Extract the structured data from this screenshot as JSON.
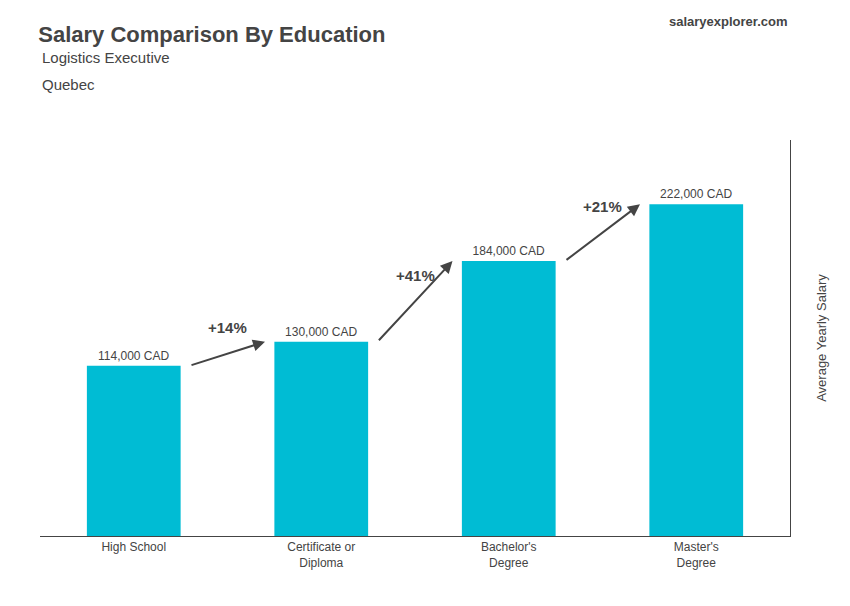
{
  "chart_data": {
    "type": "bar",
    "title": "Salary Comparison By Education",
    "subtitle": "Logistics Executive",
    "annotations": [
      {
        "text": "Quebec"
      },
      {
        "text": "salaryexplorer.com"
      },
      {
        "text": "+14%",
        "from": "High School",
        "to": "Certificate or\nDiploma"
      },
      {
        "text": "+41%",
        "from": "Certificate or\nDiploma",
        "to": "Bachelor's\nDegree"
      },
      {
        "text": "+21%",
        "from": "Bachelor's\nDegree",
        "to": "Master's\nDegree"
      }
    ],
    "ylabel": "Average Yearly Salary",
    "categories": [
      "High School",
      "Certificate or\nDiploma",
      "Bachelor's\nDegree",
      "Master's\nDegree"
    ],
    "values": [
      114000,
      130000,
      184000,
      222000
    ],
    "value_labels": [
      "114,000 CAD",
      "130,000 CAD",
      "184,000 CAD",
      "222,000 CAD"
    ],
    "data_labels": true,
    "color": "#00bcd4",
    "ylim": [
      0,
      265000
    ],
    "tick_labels": "x",
    "grid": false
  }
}
